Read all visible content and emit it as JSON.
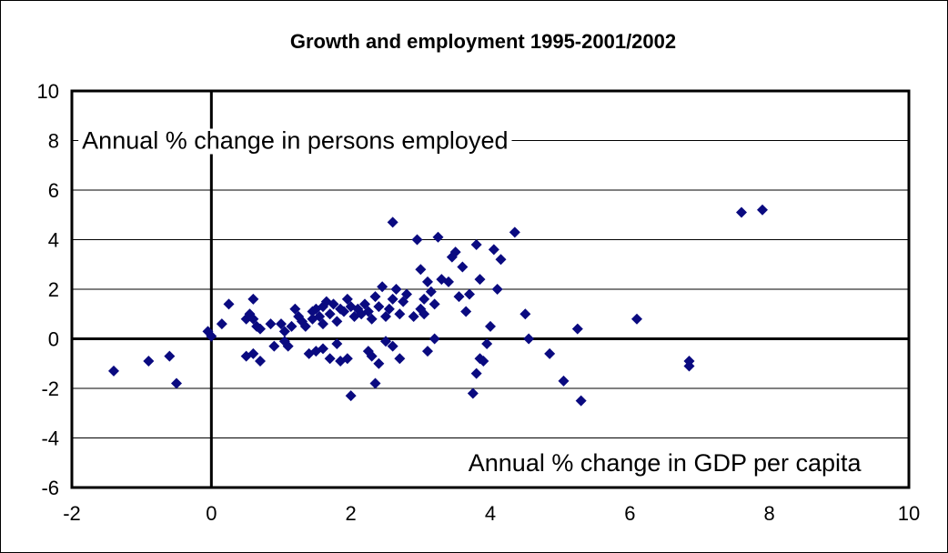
{
  "chart_data": {
    "type": "scatter",
    "title": "Growth and employment 1995-2001/2002",
    "xlabel": "Annual % change in GDP per capita",
    "ylabel": "Annual % change in persons employed",
    "xlim": [
      -2,
      10
    ],
    "ylim": [
      -6,
      10
    ],
    "xticks": [
      "-2",
      "0",
      "2",
      "4",
      "6",
      "8",
      "10"
    ],
    "yticks": [
      "10",
      "8",
      "6",
      "4",
      "2",
      "0",
      "-2",
      "-4",
      "-6"
    ],
    "grid": "horizontal",
    "legend": "none",
    "marker_color": "#0a0a80",
    "points": [
      [
        -1.4,
        -1.3
      ],
      [
        -0.9,
        -0.9
      ],
      [
        -0.6,
        -0.7
      ],
      [
        -0.5,
        -1.8
      ],
      [
        -0.05,
        0.3
      ],
      [
        0.0,
        0.1
      ],
      [
        0.15,
        0.6
      ],
      [
        0.25,
        1.4
      ],
      [
        0.5,
        0.8
      ],
      [
        0.55,
        1.0
      ],
      [
        0.6,
        0.8
      ],
      [
        0.6,
        1.6
      ],
      [
        0.65,
        0.5
      ],
      [
        0.7,
        0.4
      ],
      [
        0.5,
        -0.7
      ],
      [
        0.6,
        -0.6
      ],
      [
        0.7,
        -0.9
      ],
      [
        0.85,
        0.6
      ],
      [
        0.9,
        -0.3
      ],
      [
        1.0,
        0.6
      ],
      [
        1.05,
        0.3
      ],
      [
        1.05,
        -0.1
      ],
      [
        1.1,
        -0.3
      ],
      [
        1.15,
        0.5
      ],
      [
        1.2,
        1.2
      ],
      [
        1.25,
        0.9
      ],
      [
        1.3,
        0.7
      ],
      [
        1.35,
        0.5
      ],
      [
        1.45,
        0.8
      ],
      [
        1.45,
        1.1
      ],
      [
        1.5,
        1.2
      ],
      [
        1.55,
        0.9
      ],
      [
        1.6,
        1.3
      ],
      [
        1.6,
        0.6
      ],
      [
        1.65,
        1.5
      ],
      [
        1.7,
        1.0
      ],
      [
        1.75,
        1.4
      ],
      [
        1.8,
        0.7
      ],
      [
        1.85,
        1.2
      ],
      [
        1.9,
        1.1
      ],
      [
        1.95,
        1.6
      ],
      [
        2.0,
        1.3
      ],
      [
        2.05,
        0.9
      ],
      [
        2.1,
        1.2
      ],
      [
        2.15,
        1.0
      ],
      [
        2.2,
        1.4
      ],
      [
        2.25,
        1.1
      ],
      [
        2.3,
        0.8
      ],
      [
        2.35,
        1.7
      ],
      [
        2.4,
        1.3
      ],
      [
        2.45,
        2.1
      ],
      [
        2.5,
        0.9
      ],
      [
        2.55,
        1.2
      ],
      [
        2.6,
        1.6
      ],
      [
        2.65,
        2.0
      ],
      [
        2.7,
        1.0
      ],
      [
        2.75,
        1.5
      ],
      [
        2.8,
        1.8
      ],
      [
        2.9,
        0.9
      ],
      [
        3.0,
        1.2
      ],
      [
        3.05,
        1.6
      ],
      [
        3.1,
        2.3
      ],
      [
        3.15,
        1.9
      ],
      [
        3.2,
        1.4
      ],
      [
        1.4,
        -0.6
      ],
      [
        1.5,
        -0.5
      ],
      [
        1.6,
        -0.4
      ],
      [
        1.7,
        -0.8
      ],
      [
        1.8,
        -0.2
      ],
      [
        1.85,
        -0.9
      ],
      [
        1.95,
        -0.8
      ],
      [
        2.0,
        -2.3
      ],
      [
        2.25,
        -0.5
      ],
      [
        2.3,
        -0.7
      ],
      [
        2.35,
        -1.8
      ],
      [
        2.4,
        -1.0
      ],
      [
        2.5,
        -0.1
      ],
      [
        2.6,
        -0.3
      ],
      [
        2.7,
        -0.8
      ],
      [
        2.6,
        4.7
      ],
      [
        2.95,
        4.0
      ],
      [
        3.0,
        2.8
      ],
      [
        3.05,
        1.0
      ],
      [
        3.1,
        -0.5
      ],
      [
        3.2,
        0.0
      ],
      [
        3.25,
        4.1
      ],
      [
        3.3,
        2.4
      ],
      [
        3.4,
        2.3
      ],
      [
        3.45,
        3.3
      ],
      [
        3.5,
        3.5
      ],
      [
        3.55,
        1.7
      ],
      [
        3.6,
        2.9
      ],
      [
        3.65,
        1.1
      ],
      [
        3.7,
        1.8
      ],
      [
        3.75,
        -2.2
      ],
      [
        3.8,
        -1.4
      ],
      [
        3.85,
        -0.8
      ],
      [
        3.8,
        3.8
      ],
      [
        3.85,
        2.4
      ],
      [
        3.9,
        -0.9
      ],
      [
        3.95,
        -0.2
      ],
      [
        4.0,
        0.5
      ],
      [
        4.05,
        3.6
      ],
      [
        4.1,
        2.0
      ],
      [
        4.15,
        3.2
      ],
      [
        4.35,
        4.3
      ],
      [
        4.5,
        1.0
      ],
      [
        4.55,
        0.0
      ],
      [
        4.85,
        -0.6
      ],
      [
        5.05,
        -1.7
      ],
      [
        5.25,
        0.4
      ],
      [
        5.3,
        -2.5
      ],
      [
        6.1,
        0.8
      ],
      [
        6.85,
        -0.9
      ],
      [
        6.85,
        -1.1
      ],
      [
        7.6,
        5.1
      ],
      [
        7.9,
        5.2
      ]
    ]
  }
}
